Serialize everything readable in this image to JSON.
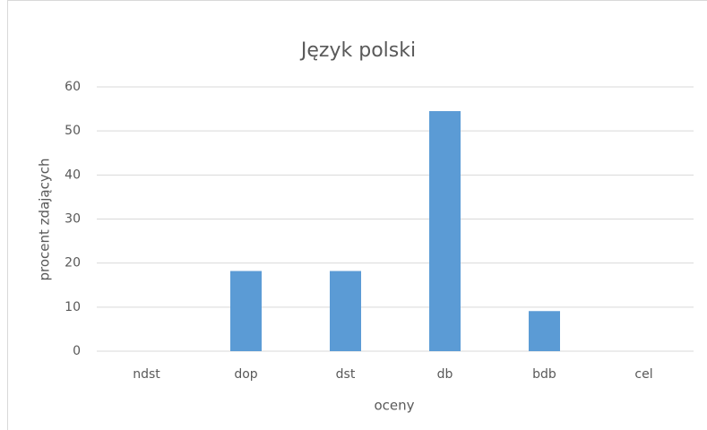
{
  "chart_data": {
    "type": "bar",
    "title": "Język polski",
    "categories": [
      "ndst",
      "dop",
      "dst",
      "db",
      "bdb",
      "cel"
    ],
    "values": [
      0,
      18.2,
      18.2,
      54.5,
      9.1,
      0
    ],
    "color": "#5b9bd5",
    "xlabel": "oceny",
    "ylabel": "procent zdających",
    "ylim": [
      0,
      60
    ],
    "yticks": [
      0,
      10,
      20,
      30,
      40,
      50,
      60
    ],
    "grid": true
  }
}
